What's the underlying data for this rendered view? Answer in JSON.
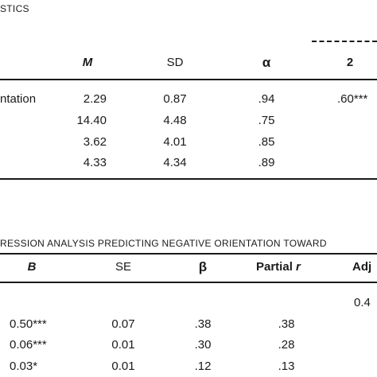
{
  "table1": {
    "caption": "STICS",
    "headers": {
      "m": "M",
      "sd": "SD",
      "alpha": "α",
      "col2": "2"
    },
    "rows": [
      {
        "label": "ntation",
        "m": "2.29",
        "sd": "0.87",
        "alpha": ".94",
        "col2": ".60***"
      },
      {
        "label": "",
        "m": "14.40",
        "sd": "4.48",
        "alpha": ".75",
        "col2": ""
      },
      {
        "label": "",
        "m": "3.62",
        "sd": "4.01",
        "alpha": ".85",
        "col2": ""
      },
      {
        "label": "",
        "m": "4.33",
        "sd": "4.34",
        "alpha": ".89",
        "col2": ""
      }
    ]
  },
  "table2": {
    "caption": "RESSION ANALYSIS PREDICTING NEGATIVE ORIENTATION TOWARD",
    "headers": {
      "b": "B",
      "se": "SE",
      "beta": "β",
      "partial": "Partial",
      "partial_r": "r",
      "adj": "Adj"
    },
    "adj_value": "0.4",
    "rows": [
      {
        "b": "0.50***",
        "se": "0.07",
        "beta": ".38",
        "partial": ".38"
      },
      {
        "b": "0.06***",
        "se": "0.01",
        "beta": ".30",
        "partial": ".28"
      },
      {
        "b": "0.03*",
        "se": "0.01",
        "beta": ".12",
        "partial": ".13"
      }
    ]
  }
}
